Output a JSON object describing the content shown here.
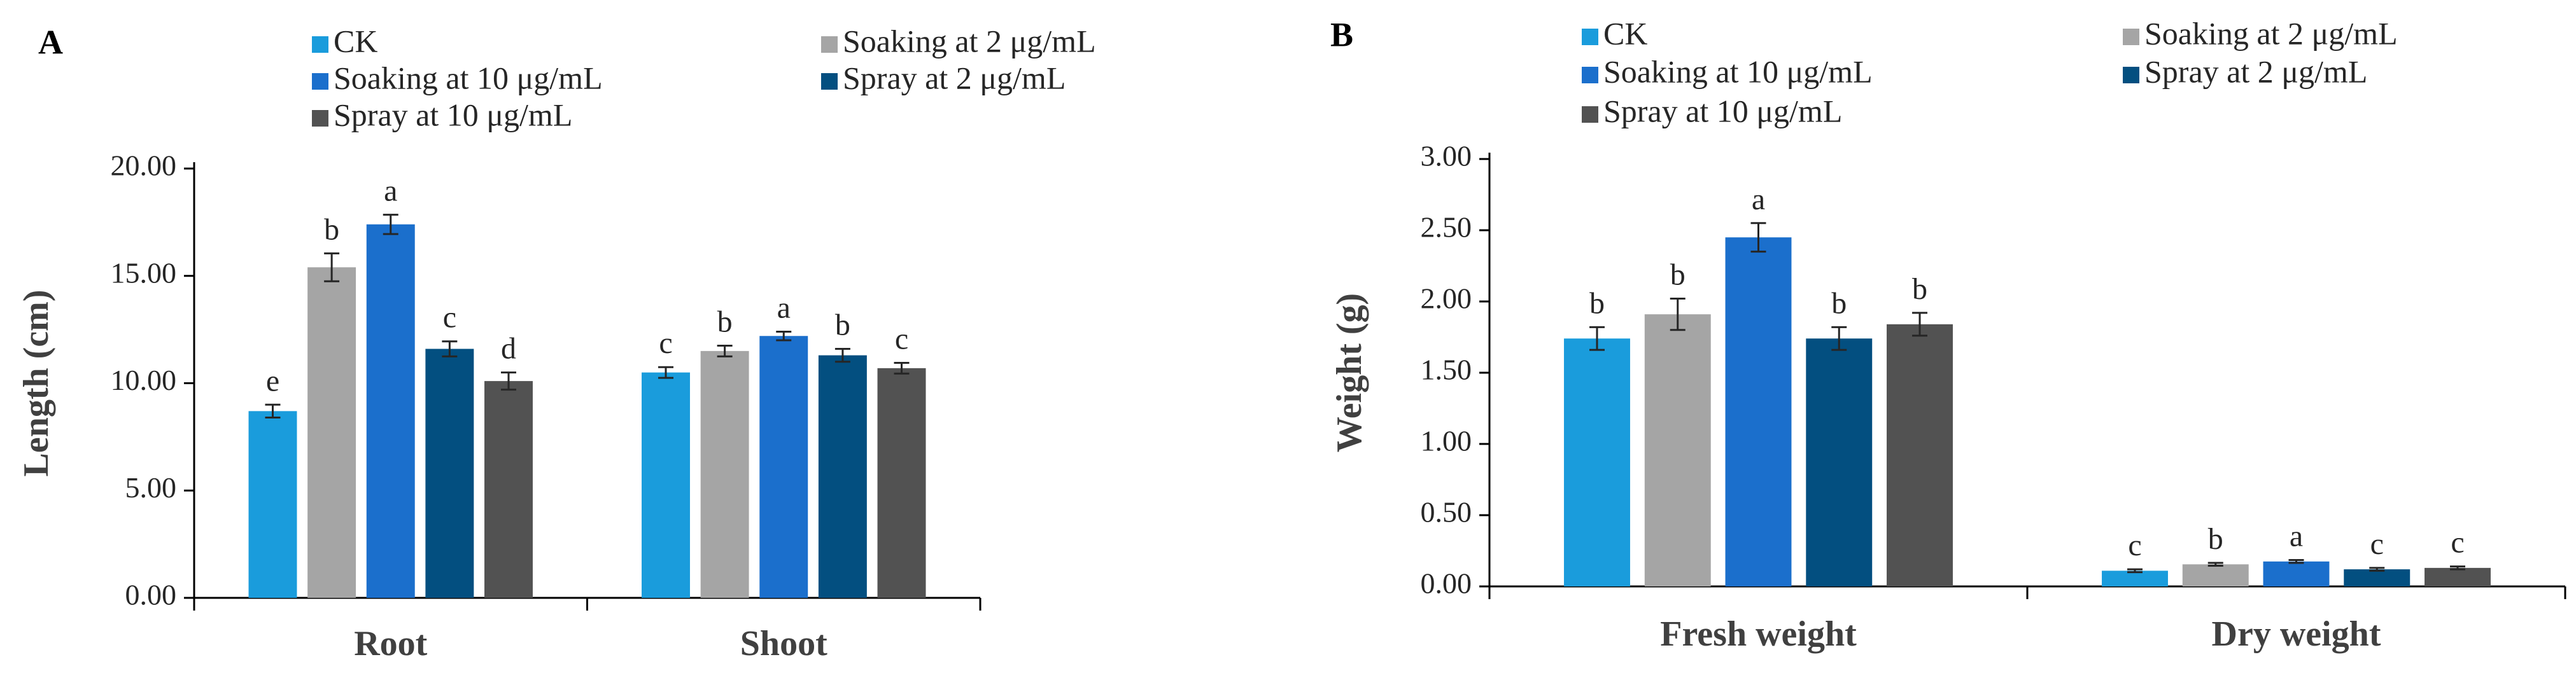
{
  "chart_data": [
    {
      "type": "bar",
      "panel_label": "A",
      "ylabel": "Length (cm)",
      "xlabel": "",
      "ylim": [
        0,
        20
      ],
      "yticks": [
        0,
        5,
        10,
        15,
        20
      ],
      "ytick_labels": [
        "0.00",
        "5.00",
        "10.00",
        "15.00",
        "20.00"
      ],
      "categories": [
        "Root",
        "Shoot"
      ],
      "grid": false,
      "legend_position": "top",
      "series": [
        {
          "name": "CK",
          "color": "#1a9cdc",
          "values": [
            8.7,
            10.5
          ],
          "errors": [
            0.3,
            0.25
          ],
          "letters": [
            "e",
            "c"
          ]
        },
        {
          "name": "Soaking at 2 μg/mL",
          "color": "#a5a5a5",
          "values": [
            15.4,
            11.5
          ],
          "errors": [
            0.65,
            0.25
          ],
          "letters": [
            "b",
            "b"
          ]
        },
        {
          "name": "Soaking at 10 μg/mL",
          "color": "#1b6fcc",
          "values": [
            17.4,
            12.2
          ],
          "errors": [
            0.45,
            0.2
          ],
          "letters": [
            "a",
            "a"
          ]
        },
        {
          "name": "Spray at 2 μg/mL",
          "color": "#034f80",
          "values": [
            11.6,
            11.3
          ],
          "errors": [
            0.35,
            0.3
          ],
          "letters": [
            "c",
            "b"
          ]
        },
        {
          "name": "Spray at 10 μg/mL",
          "color": "#525252",
          "values": [
            10.1,
            10.7
          ],
          "errors": [
            0.4,
            0.25
          ],
          "letters": [
            "d",
            "c"
          ]
        }
      ]
    },
    {
      "type": "bar",
      "panel_label": "B",
      "ylabel": "Weight (g)",
      "xlabel": "",
      "ylim": [
        0,
        3
      ],
      "yticks": [
        0,
        0.5,
        1,
        1.5,
        2,
        2.5,
        3
      ],
      "ytick_labels": [
        "0.00",
        "0.50",
        "1.00",
        "1.50",
        "2.00",
        "2.50",
        "3.00"
      ],
      "categories": [
        "Fresh weight",
        "Dry weight"
      ],
      "grid": false,
      "legend_position": "top",
      "series": [
        {
          "name": "CK",
          "color": "#1a9cdc",
          "values": [
            1.74,
            0.11
          ],
          "errors": [
            0.08,
            0.01
          ],
          "letters": [
            "b",
            "c"
          ]
        },
        {
          "name": "Soaking at 2 μg/mL",
          "color": "#a5a5a5",
          "values": [
            1.91,
            0.155
          ],
          "errors": [
            0.11,
            0.01
          ],
          "letters": [
            "b",
            "b"
          ]
        },
        {
          "name": "Soaking at 10 μg/mL",
          "color": "#1b6fcc",
          "values": [
            2.45,
            0.175
          ],
          "errors": [
            0.1,
            0.01
          ],
          "letters": [
            "a",
            "a"
          ]
        },
        {
          "name": "Spray at 2 μg/mL",
          "color": "#034f80",
          "values": [
            1.74,
            0.12
          ],
          "errors": [
            0.08,
            0.01
          ],
          "letters": [
            "b",
            "c"
          ]
        },
        {
          "name": "Spray at 10 μg/mL",
          "color": "#525252",
          "values": [
            1.84,
            0.13
          ],
          "errors": [
            0.08,
            0.01
          ],
          "letters": [
            "b",
            "c"
          ]
        }
      ]
    }
  ]
}
